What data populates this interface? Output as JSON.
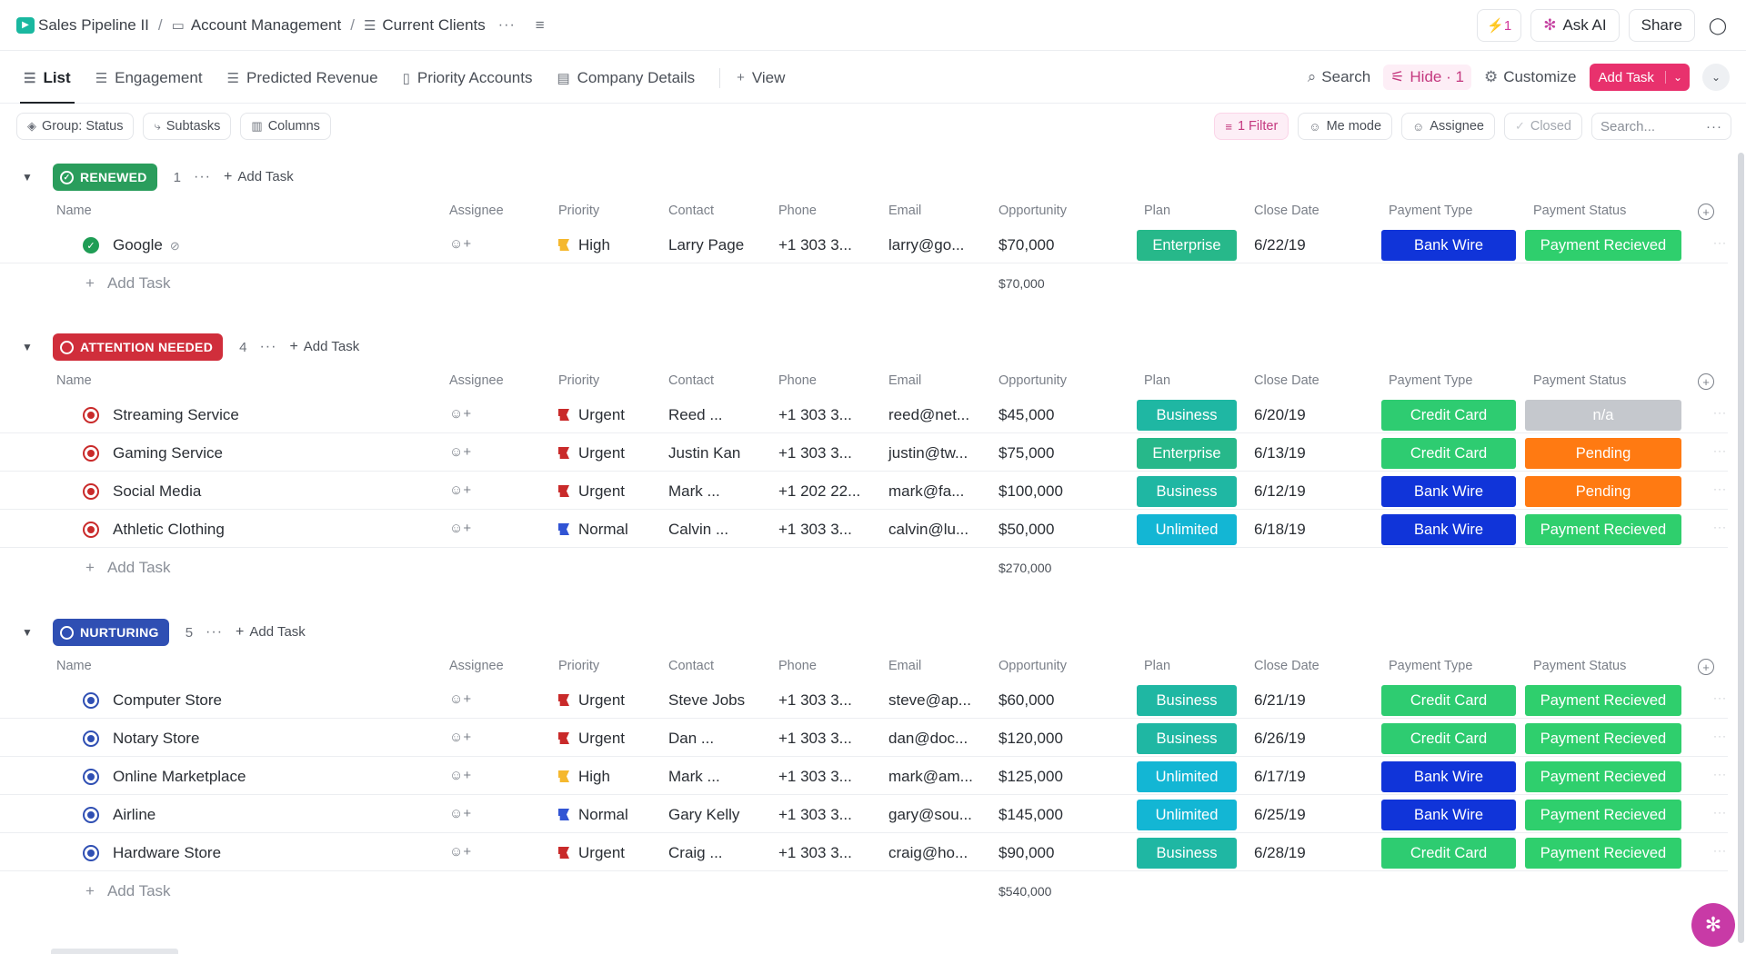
{
  "breadcrumb": {
    "space": "Sales Pipeline II",
    "folder": "Account Management",
    "list": "Current Clients"
  },
  "topbar": {
    "bolt_count": "1",
    "ask_ai": "Ask AI",
    "share": "Share"
  },
  "views": [
    {
      "label": "List",
      "icon": "list-icon"
    },
    {
      "label": "Engagement",
      "icon": "list-icon"
    },
    {
      "label": "Predicted Revenue",
      "icon": "list-icon"
    },
    {
      "label": "Priority Accounts",
      "icon": "board-icon"
    },
    {
      "label": "Company Details",
      "icon": "doc-icon"
    }
  ],
  "add_view": "View",
  "view_actions": {
    "search": "Search",
    "hide": "Hide · 1",
    "customize": "Customize",
    "add_task": "Add Task"
  },
  "filters": {
    "group": "Group: Status",
    "subtasks": "Subtasks",
    "columns": "Columns"
  },
  "filters_right": {
    "filter": "1 Filter",
    "me_mode": "Me mode",
    "assignee": "Assignee",
    "closed": "Closed",
    "search_placeholder": "Search..."
  },
  "columns": [
    "Name",
    "Assignee",
    "Priority",
    "Contact",
    "Phone",
    "Email",
    "Opportunity",
    "Plan",
    "Close Date",
    "Payment Type",
    "Payment Status"
  ],
  "add_task_label": "Add Task",
  "colors": {
    "renewed": "#2a9d5c",
    "attention": "#d02e3b",
    "nurturing": "#2f4fb3",
    "enterprise": "#27b88a",
    "business": "#1fb7a3",
    "unlimited": "#13b6d4",
    "bank_wire": "#1034d9",
    "credit_card": "#2ecc71",
    "payment_received": "#2fcf6d",
    "pending": "#ff7a12",
    "na": "#c5c8cd"
  },
  "groups": [
    {
      "status": "RENEWED",
      "count": "1",
      "total": "$70,000",
      "tasks": [
        {
          "name": "Google",
          "priority": "High",
          "contact": "Larry Page",
          "phone": "+1 303 3...",
          "email": "larry@go...",
          "opportunity": "$70,000",
          "plan": "Enterprise",
          "close_date": "6/22/19",
          "payment_type": "Bank Wire",
          "payment_status": "Payment Recieved"
        }
      ]
    },
    {
      "status": "ATTENTION NEEDED",
      "count": "4",
      "total": "$270,000",
      "tasks": [
        {
          "name": "Streaming Service",
          "priority": "Urgent",
          "contact": "Reed ...",
          "phone": "+1 303 3...",
          "email": "reed@net...",
          "opportunity": "$45,000",
          "plan": "Business",
          "close_date": "6/20/19",
          "payment_type": "Credit Card",
          "payment_status": "n/a"
        },
        {
          "name": "Gaming Service",
          "priority": "Urgent",
          "contact": "Justin Kan",
          "phone": "+1 303 3...",
          "email": "justin@tw...",
          "opportunity": "$75,000",
          "plan": "Enterprise",
          "close_date": "6/13/19",
          "payment_type": "Credit Card",
          "payment_status": "Pending"
        },
        {
          "name": "Social Media",
          "priority": "Urgent",
          "contact": "Mark ...",
          "phone": "+1 202 22...",
          "email": "mark@fa...",
          "opportunity": "$100,000",
          "plan": "Business",
          "close_date": "6/12/19",
          "payment_type": "Bank Wire",
          "payment_status": "Pending"
        },
        {
          "name": "Athletic Clothing",
          "priority": "Normal",
          "contact": "Calvin ...",
          "phone": "+1 303 3...",
          "email": "calvin@lu...",
          "opportunity": "$50,000",
          "plan": "Unlimited",
          "close_date": "6/18/19",
          "payment_type": "Bank Wire",
          "payment_status": "Payment Recieved"
        }
      ]
    },
    {
      "status": "NURTURING",
      "count": "5",
      "total": "$540,000",
      "tasks": [
        {
          "name": "Computer Store",
          "priority": "Urgent",
          "contact": "Steve Jobs",
          "phone": "+1 303 3...",
          "email": "steve@ap...",
          "opportunity": "$60,000",
          "plan": "Business",
          "close_date": "6/21/19",
          "payment_type": "Credit Card",
          "payment_status": "Payment Recieved"
        },
        {
          "name": "Notary Store",
          "priority": "Urgent",
          "contact": "Dan ...",
          "phone": "+1 303 3...",
          "email": "dan@doc...",
          "opportunity": "$120,000",
          "plan": "Business",
          "close_date": "6/26/19",
          "payment_type": "Credit Card",
          "payment_status": "Payment Recieved"
        },
        {
          "name": "Online Marketplace",
          "priority": "High",
          "contact": "Mark ...",
          "phone": "+1 303 3...",
          "email": "mark@am...",
          "opportunity": "$125,000",
          "plan": "Unlimited",
          "close_date": "6/17/19",
          "payment_type": "Bank Wire",
          "payment_status": "Payment Recieved"
        },
        {
          "name": "Airline",
          "priority": "Normal",
          "contact": "Gary Kelly",
          "phone": "+1 303 3...",
          "email": "gary@sou...",
          "opportunity": "$145,000",
          "plan": "Unlimited",
          "close_date": "6/25/19",
          "payment_type": "Bank Wire",
          "payment_status": "Payment Recieved"
        },
        {
          "name": "Hardware Store",
          "priority": "Urgent",
          "contact": "Craig ...",
          "phone": "+1 303 3...",
          "email": "craig@ho...",
          "opportunity": "$90,000",
          "plan": "Business",
          "close_date": "6/28/19",
          "payment_type": "Credit Card",
          "payment_status": "Payment Recieved"
        }
      ]
    }
  ]
}
